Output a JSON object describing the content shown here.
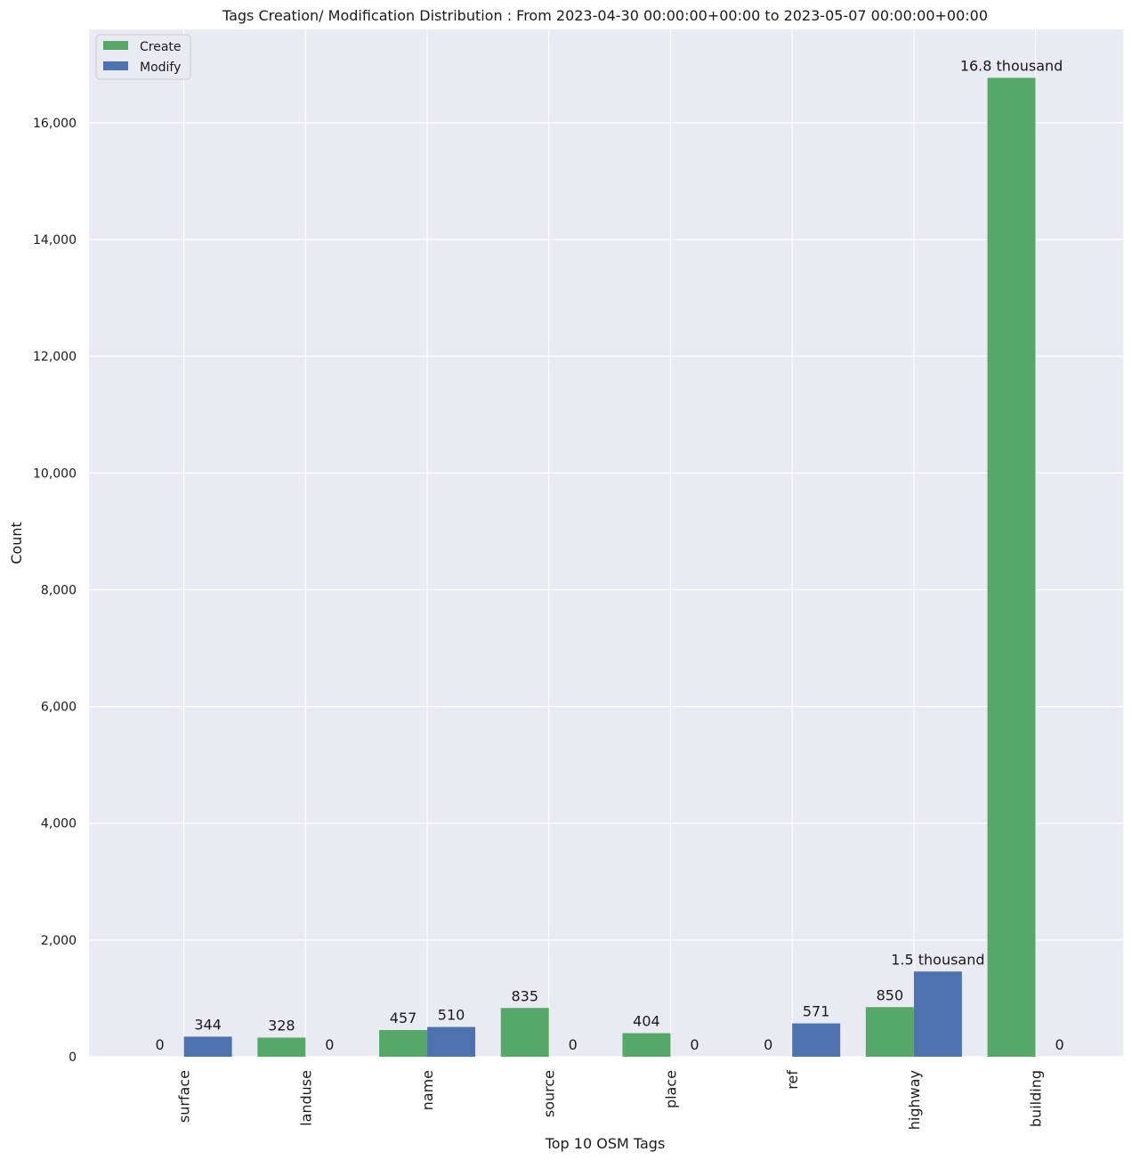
{
  "colors": {
    "create": "#55a868",
    "modify": "#4c72b0",
    "plot_bg": "#eaeaf2",
    "grid": "#ffffff"
  },
  "chart_data": {
    "type": "bar",
    "title": "Tags Creation/ Modification Distribution : From 2023-04-30 00:00:00+00:00 to 2023-05-07 00:00:00+00:00",
    "xlabel": "Top 10 OSM Tags",
    "ylabel": "Count",
    "ylim": [
      0,
      17600
    ],
    "yticks": [
      0,
      2000,
      4000,
      6000,
      8000,
      10000,
      12000,
      14000,
      16000
    ],
    "ytick_labels": [
      "0",
      "2,000",
      "4,000",
      "6,000",
      "8,000",
      "10,000",
      "12,000",
      "14,000",
      "16,000"
    ],
    "categories": [
      "surface",
      "landuse",
      "name",
      "source",
      "place",
      "ref",
      "highway",
      "building"
    ],
    "grid": true,
    "legend_position": "top-left",
    "series": [
      {
        "name": "Create",
        "color_key": "create",
        "values": [
          0,
          328,
          457,
          835,
          404,
          0,
          850,
          16770
        ],
        "labels": [
          "0",
          "328",
          "457",
          "835",
          "404",
          "0",
          "850",
          "16.8 thousand"
        ]
      },
      {
        "name": "Modify",
        "color_key": "modify",
        "values": [
          344,
          0,
          510,
          0,
          0,
          571,
          1460,
          0
        ],
        "labels": [
          "344",
          "0",
          "510",
          "0",
          "0",
          "571",
          "1.5 thousand",
          "0"
        ]
      }
    ]
  }
}
